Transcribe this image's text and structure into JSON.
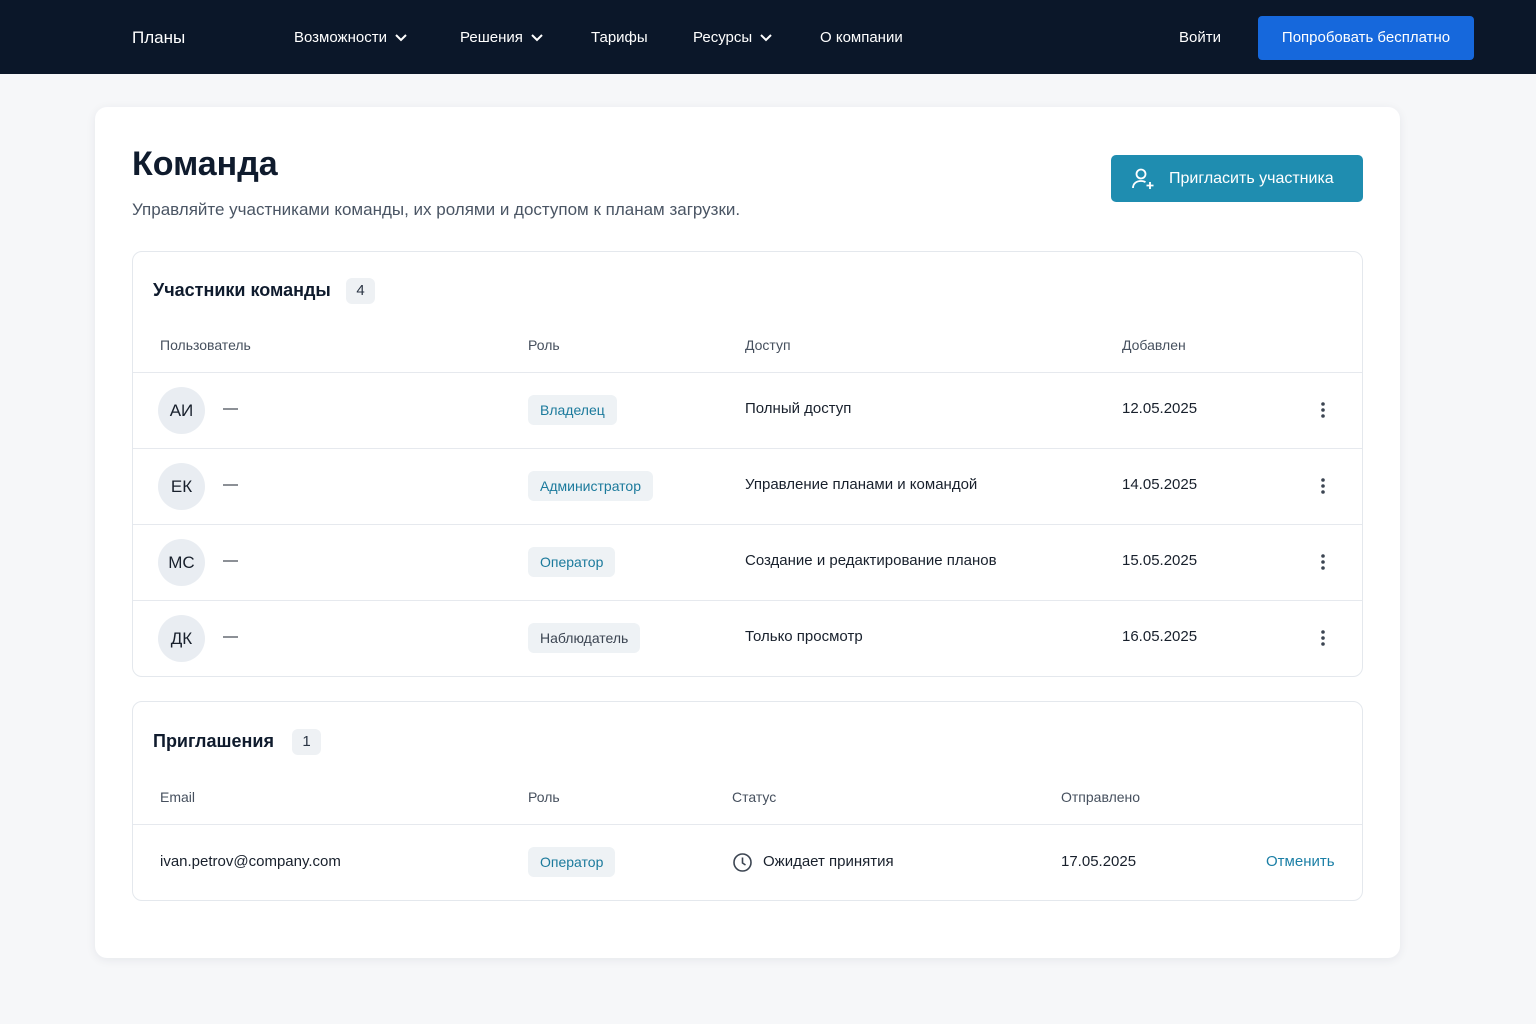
{
  "nav": {
    "brand": "Планы",
    "items": [
      "Возможности",
      "Решения",
      "Тарифы",
      "Ресурсы",
      "О компании"
    ],
    "login": "Войти",
    "cta": "Попробовать бесплатно"
  },
  "header": {
    "title": "Команда",
    "subtitle": "Управляйте участниками команды, их ролями и доступом к планам загрузки.",
    "invite_button": "Пригласить участника"
  },
  "members": {
    "title": "Участники команды",
    "count": 4,
    "columns": [
      "Пользователь",
      "Роль",
      "Доступ",
      "Добавлен"
    ],
    "rows": [
      {
        "initials": "АИ",
        "name": "—",
        "role": "Владелец",
        "access": "Полный доступ",
        "added": "12.05.2025"
      },
      {
        "initials": "ЕК",
        "name": "—",
        "role": "Администратор",
        "access": "Управление планами и командой",
        "added": "14.05.2025"
      },
      {
        "initials": "МС",
        "name": "—",
        "role": "Оператор",
        "access": "Создание и редактирование планов",
        "added": "15.05.2025"
      },
      {
        "initials": "ДК",
        "name": "—",
        "role": "Наблюдатель",
        "access": "Только просмотр",
        "added": "16.05.2025"
      }
    ]
  },
  "invites": {
    "title": "Приглашения",
    "count": 1,
    "columns": [
      "Email",
      "Роль",
      "Статус",
      "Отправлено"
    ],
    "rows": [
      {
        "email": "ivan.petrov@company.com",
        "role": "Оператор",
        "status": "Ожидает принятия",
        "sent": "17.05.2025",
        "action": "Отменить"
      }
    ]
  }
}
